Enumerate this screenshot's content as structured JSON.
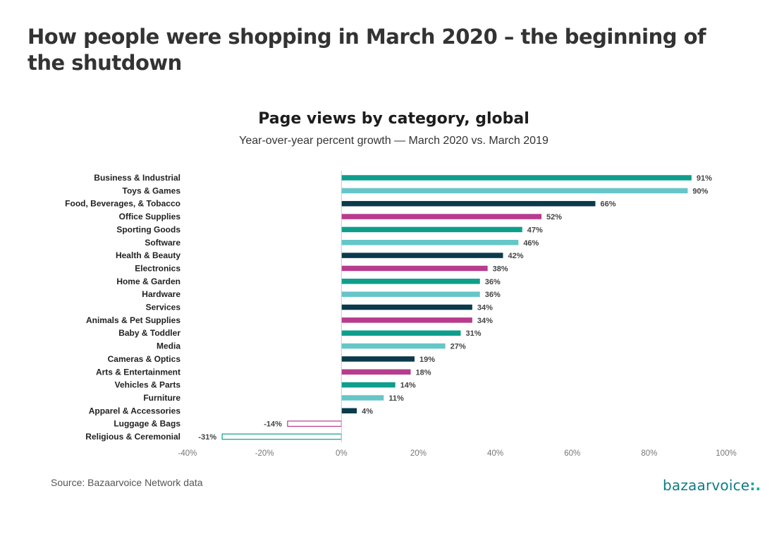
{
  "header": {
    "title": "How people were shopping in March 2020 – the beginning of the shutdown"
  },
  "footer": {
    "source": "Source: Bazaarvoice Network data",
    "logo_text": "bazaarvoice",
    "logo_suffix": ":."
  },
  "colors": {
    "teal": "#0e9e8c",
    "light_teal": "#66c6c8",
    "navy": "#0b3a4b",
    "magenta": "#b73c8d",
    "axis": "#c8c8c8"
  },
  "chart_data": {
    "type": "bar",
    "orientation": "horizontal",
    "title": "Page views by category, global",
    "subtitle": "Year-over-year percent growth — March 2020 vs. March 2019",
    "xlim": [
      -40,
      100
    ],
    "x_ticks": [
      "-40%",
      "-20%",
      "0%",
      "20%",
      "40%",
      "60%",
      "80%",
      "100%"
    ],
    "x_tick_values": [
      -40,
      -20,
      0,
      20,
      40,
      60,
      80,
      100
    ],
    "grid": false,
    "categories": [
      "Business & Industrial",
      "Toys & Games",
      "Food, Beverages, & Tobacco",
      "Office Supplies",
      "Sporting Goods",
      "Software",
      "Health & Beauty",
      "Electronics",
      "Home & Garden",
      "Hardware",
      "Services",
      "Animals & Pet Supplies",
      "Baby & Toddler",
      "Media",
      "Cameras & Optics",
      "Arts & Entertainment",
      "Vehicles & Parts",
      "Furniture",
      "Apparel & Accessories",
      "Luggage & Bags",
      "Religious & Ceremonial"
    ],
    "values": [
      91,
      90,
      66,
      52,
      47,
      46,
      42,
      38,
      36,
      36,
      34,
      34,
      31,
      27,
      19,
      18,
      14,
      11,
      4,
      -14,
      -31
    ],
    "labels": [
      "91%",
      "90%",
      "66%",
      "52%",
      "47%",
      "46%",
      "42%",
      "38%",
      "36%",
      "36%",
      "34%",
      "34%",
      "31%",
      "27%",
      "19%",
      "18%",
      "14%",
      "11%",
      "4%",
      "-14%",
      "-31%"
    ],
    "bar_colors": [
      "#0e9e8c",
      "#66c6c8",
      "#0b3a4b",
      "#b73c8d",
      "#0e9e8c",
      "#66c6c8",
      "#0b3a4b",
      "#b73c8d",
      "#0e9e8c",
      "#66c6c8",
      "#0b3a4b",
      "#b73c8d",
      "#0e9e8c",
      "#66c6c8",
      "#0b3a4b",
      "#b73c8d",
      "#0e9e8c",
      "#66c6c8",
      "#0b3a4b",
      "#b73c8d",
      "#0e9e8c"
    ]
  }
}
